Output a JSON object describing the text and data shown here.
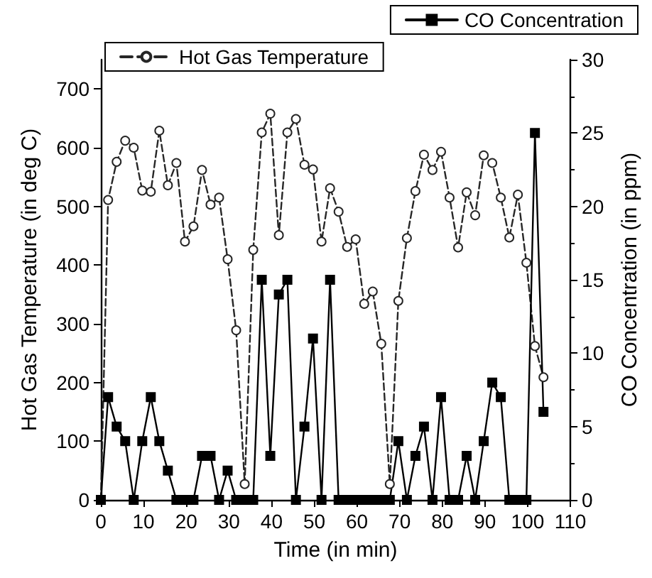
{
  "chart_data": {
    "type": "line",
    "xlabel": "Time (in min)",
    "ylabel": "Hot Gas Temperature (in deg C)",
    "y2label": "CO Concentration (in ppm)",
    "x": [
      0,
      1.7,
      3.7,
      5.7,
      7.7,
      9.7,
      11.7,
      13.7,
      15.7,
      17.7,
      19.7,
      21.7,
      23.7,
      25.7,
      27.7,
      29.7,
      31.7,
      33.7,
      35.7,
      37.7,
      39.7,
      41.7,
      43.7,
      45.7,
      47.7,
      49.7,
      51.7,
      53.7,
      55.7,
      57.7,
      59.7,
      61.7,
      63.7,
      65.7,
      67.7,
      69.7,
      71.7,
      73.7,
      75.7,
      77.7,
      79.7,
      81.7,
      83.7,
      85.7,
      87.7,
      89.7,
      91.7,
      93.7,
      95.7,
      97.7,
      99.7,
      101.7,
      103.7
    ],
    "series": [
      {
        "name": "Hot Gas Temperature",
        "color": "#262626",
        "marker": "circle",
        "line_style": "dashed",
        "values": [
          0,
          511,
          576,
          612,
          600,
          527,
          525,
          629,
          536,
          574,
          440,
          466,
          562,
          503,
          515,
          410,
          289,
          27,
          426,
          626,
          658,
          451,
          626,
          649,
          571,
          563,
          440,
          531,
          491,
          431,
          444,
          334,
          355,
          266,
          27,
          339,
          446,
          526,
          588,
          562,
          593,
          515,
          430,
          524,
          485,
          587,
          574,
          515,
          447,
          520,
          404,
          262,
          209
        ]
      },
      {
        "name": "CO Concentration",
        "color": "#000000",
        "axis": "y2",
        "marker": "square",
        "line_style": "solid",
        "values": [
          0,
          7,
          5,
          4,
          0,
          4,
          7,
          4,
          2,
          0,
          0,
          0,
          3,
          3,
          0,
          2,
          0,
          0,
          0,
          15,
          3,
          14,
          15,
          0,
          5,
          11,
          0,
          15,
          0,
          0,
          0,
          0,
          0,
          0,
          0,
          4,
          0,
          3,
          5,
          0,
          7,
          0,
          0,
          3,
          0,
          4,
          8,
          7,
          0,
          0,
          0,
          25,
          6
        ]
      }
    ],
    "xlim": [
      0,
      110
    ],
    "xticks": [
      0,
      10,
      20,
      30,
      40,
      50,
      60,
      70,
      80,
      90,
      100,
      110
    ],
    "ylim": [
      0,
      750
    ],
    "yticks": [
      0,
      100,
      200,
      300,
      400,
      500,
      600,
      700
    ],
    "y2lim": [
      0,
      30
    ],
    "y2ticks": [
      0,
      5,
      10,
      15,
      20,
      25,
      30
    ],
    "legend": "top",
    "grid": false
  }
}
